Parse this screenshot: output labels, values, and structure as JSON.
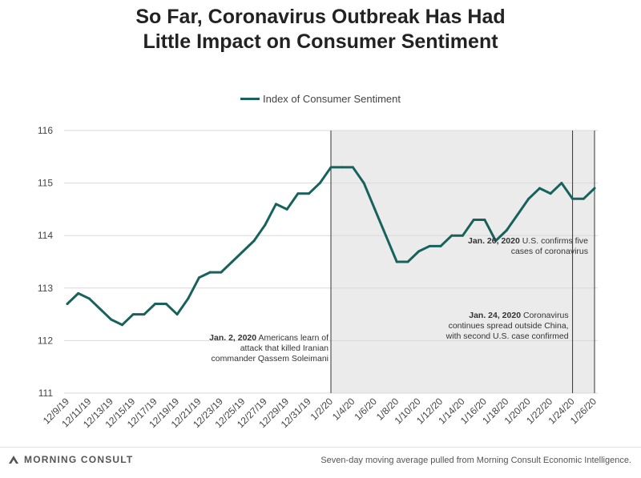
{
  "title_lines": [
    "So Far, Coronavirus Outbreak Has Had",
    "Little Impact on Consumer Sentiment"
  ],
  "legend_label": "Index of Consumer Sentiment",
  "brand": "MORNING CONSULT",
  "source": "Seven-day moving average pulled from Morning Consult Economic Intelligence.",
  "colors": {
    "line": "#17625c",
    "shade": "#ebebeb",
    "grid": "#d9d9d9",
    "vline": "#333333"
  },
  "chart_data": {
    "type": "line",
    "title": "So Far, Coronavirus Outbreak Has Had Little Impact on Consumer Sentiment",
    "xlabel": "",
    "ylabel": "",
    "ylim": [
      111,
      116
    ],
    "yticks": [
      111,
      112,
      113,
      114,
      115,
      116
    ],
    "grid": true,
    "legend": "top-center",
    "x_start": "12/9/19",
    "x_tick_labels": [
      "12/9/19",
      "12/11/19",
      "12/13/19",
      "12/15/19",
      "12/17/19",
      "12/19/19",
      "12/21/19",
      "12/23/19",
      "12/25/19",
      "12/27/19",
      "12/29/19",
      "12/31/19",
      "1/2/20",
      "1/4/20",
      "1/6/20",
      "1/8/20",
      "1/10/20",
      "1/12/20",
      "1/14/20",
      "1/16/20",
      "1/18/20",
      "1/20/20",
      "1/22/20",
      "1/24/20",
      "1/26/20"
    ],
    "series": [
      {
        "name": "Index of Consumer Sentiment",
        "values": [
          112.7,
          112.9,
          112.8,
          112.6,
          112.4,
          112.3,
          112.5,
          112.5,
          112.7,
          112.7,
          112.5,
          112.8,
          113.2,
          113.3,
          113.3,
          113.5,
          113.7,
          113.9,
          114.2,
          114.6,
          114.5,
          114.8,
          114.8,
          115.0,
          115.3,
          115.3,
          115.3,
          115.0,
          114.5,
          114.0,
          113.5,
          113.5,
          113.7,
          113.8,
          113.8,
          114.0,
          114.0,
          114.3,
          114.3,
          113.9,
          114.1,
          114.4,
          114.7,
          114.9,
          114.8,
          115.0,
          114.7,
          114.7,
          114.9
        ]
      }
    ],
    "shaded_region": {
      "from": "1/2/20",
      "to": "1/26/20"
    },
    "vertical_markers": [
      "1/2/20",
      "1/24/20",
      "1/26/20"
    ],
    "annotations": [
      {
        "at": "1/2/20",
        "bold": "Jan. 2, 2020",
        "lines": [
          "Americans learn of",
          "attack that killed Iranian",
          "commander Qassem Soleimani"
        ]
      },
      {
        "at": "1/24/20",
        "bold": "Jan. 24, 2020",
        "lines": [
          "Coronavirus",
          "continues spread outside China,",
          "with second U.S. case confirmed"
        ]
      },
      {
        "at": "1/26/20",
        "bold": "Jan. 26, 2020",
        "lines": [
          "U.S. confirms five",
          "cases of coronavirus"
        ]
      }
    ]
  }
}
